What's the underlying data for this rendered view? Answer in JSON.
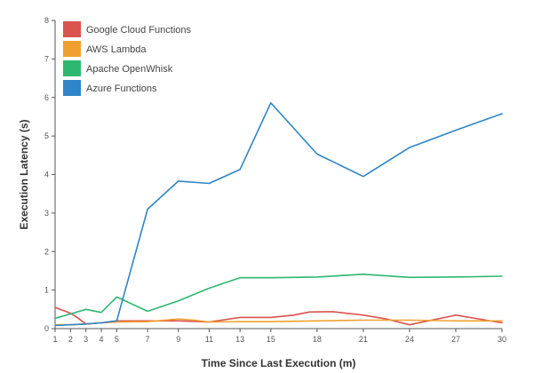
{
  "chart_data": {
    "type": "line",
    "title": "",
    "xlabel": "Time Since Last Execution (m)",
    "ylabel": "Execution Latency (s)",
    "x": [
      1,
      2,
      3,
      4,
      5,
      7,
      9,
      11,
      13,
      15,
      18,
      21,
      24,
      27,
      30
    ],
    "x_ticks": [
      "1",
      "2",
      "3",
      "4",
      "5",
      "7",
      "9",
      "11",
      "13",
      "15",
      "18",
      "21",
      "24",
      "27",
      "30"
    ],
    "y_ticks": [
      "0",
      "1",
      "2",
      "3",
      "4",
      "5",
      "6",
      "7",
      "8"
    ],
    "xlim": [
      1,
      30
    ],
    "ylim": [
      0,
      8
    ],
    "grid": false,
    "legend_position": "top-left",
    "series": [
      {
        "name": "Google Cloud Functions",
        "color": "#d9534f",
        "points": [
          [
            1,
            0.55
          ],
          [
            2,
            0.4
          ],
          [
            2.5,
            0.27
          ],
          [
            3,
            0.12
          ],
          [
            4,
            0.15
          ],
          [
            5,
            0.2
          ],
          [
            7,
            0.2
          ],
          [
            9,
            0.2
          ],
          [
            11,
            0.17
          ],
          [
            13,
            0.29
          ],
          [
            15,
            0.29
          ],
          [
            16.5,
            0.35
          ],
          [
            17.5,
            0.43
          ],
          [
            19,
            0.44
          ],
          [
            21,
            0.35
          ],
          [
            22.5,
            0.25
          ],
          [
            24,
            0.1
          ],
          [
            27,
            0.35
          ],
          [
            30,
            0.15
          ]
        ]
      },
      {
        "name": "AWS Lambda",
        "color": "#f0a030",
        "points": [
          [
            1,
            0.1
          ],
          [
            2,
            0.1
          ],
          [
            3,
            0.12
          ],
          [
            4,
            0.15
          ],
          [
            5,
            0.17
          ],
          [
            7,
            0.18
          ],
          [
            9,
            0.25
          ],
          [
            10,
            0.22
          ],
          [
            11,
            0.17
          ],
          [
            13,
            0.18
          ],
          [
            15,
            0.18
          ],
          [
            18,
            0.2
          ],
          [
            21,
            0.22
          ],
          [
            24,
            0.22
          ],
          [
            27,
            0.2
          ],
          [
            30,
            0.2
          ]
        ]
      },
      {
        "name": "Apache OpenWhisk",
        "color": "#2db870",
        "points": [
          [
            1,
            0.27
          ],
          [
            2,
            0.38
          ],
          [
            3,
            0.5
          ],
          [
            4,
            0.42
          ],
          [
            5,
            0.82
          ],
          [
            7,
            0.45
          ],
          [
            9,
            0.72
          ],
          [
            11,
            1.05
          ],
          [
            13,
            1.32
          ],
          [
            15,
            1.32
          ],
          [
            18,
            1.34
          ],
          [
            21,
            1.41
          ],
          [
            24,
            1.33
          ],
          [
            27,
            1.34
          ],
          [
            30,
            1.36
          ]
        ]
      },
      {
        "name": "Azure Functions",
        "color": "#2f85c8",
        "points": [
          [
            1,
            0.08
          ],
          [
            2,
            0.1
          ],
          [
            3,
            0.12
          ],
          [
            4,
            0.15
          ],
          [
            5,
            0.2
          ],
          [
            7,
            3.1
          ],
          [
            9,
            3.83
          ],
          [
            11,
            3.77
          ],
          [
            13,
            4.13
          ],
          [
            15,
            5.86
          ],
          [
            18,
            4.53
          ],
          [
            21,
            3.95
          ],
          [
            24,
            4.7
          ],
          [
            27,
            5.15
          ],
          [
            30,
            5.58
          ]
        ]
      }
    ]
  }
}
